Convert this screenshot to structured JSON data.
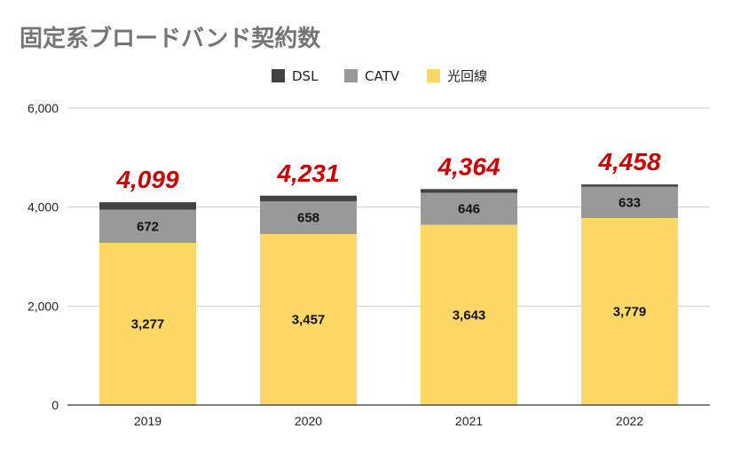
{
  "chart_data": {
    "type": "bar",
    "stacked": true,
    "title": "固定系ブロードバンド契約数",
    "xlabel": "",
    "ylabel": "",
    "ylim": [
      0,
      6000
    ],
    "yticks": [
      0,
      2000,
      4000,
      6000
    ],
    "ytick_labels": [
      "0",
      "2,000",
      "4,000",
      "6,000"
    ],
    "grid": true,
    "legend_position": "top",
    "categories": [
      "2019",
      "2020",
      "2021",
      "2022"
    ],
    "series": [
      {
        "name": "光回線",
        "color": "#FDD866",
        "values": [
          3277,
          3457,
          3643,
          3779
        ],
        "labels": [
          "3,277",
          "3,457",
          "3,643",
          "3,779"
        ]
      },
      {
        "name": "CATV",
        "color": "#999999",
        "values": [
          672,
          658,
          646,
          633
        ],
        "labels": [
          "672",
          "658",
          "646",
          "633"
        ]
      },
      {
        "name": "DSL",
        "color": "#424242",
        "values": [
          150,
          116,
          75,
          46
        ]
      }
    ],
    "legend_order": [
      "DSL",
      "CATV",
      "光回線"
    ],
    "totals": [
      4099,
      4231,
      4364,
      4458
    ],
    "total_labels": [
      "4,099",
      "4,231",
      "4,364",
      "4,458"
    ]
  }
}
